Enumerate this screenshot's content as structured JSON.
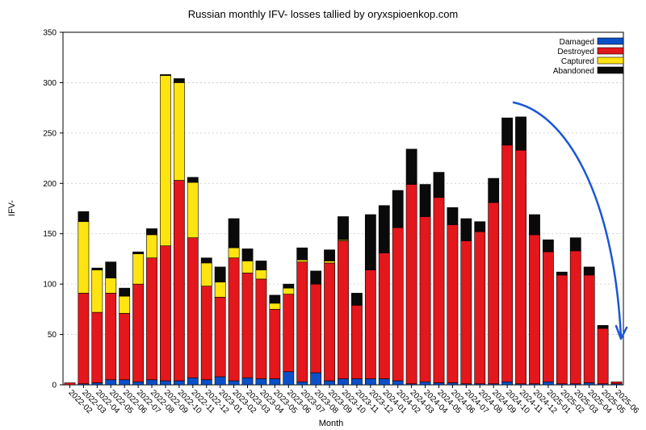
{
  "chart_data": {
    "type": "bar",
    "stacked": true,
    "title": "Russian monthly IFV- losses tallied by oryxspioenkop.com",
    "xlabel": "Month",
    "ylabel": "IFV-",
    "ylim": [
      0,
      350
    ],
    "yticks": [
      0,
      50,
      100,
      150,
      200,
      250,
      300,
      350
    ],
    "grid": true,
    "legend_position": "top-right",
    "categories": [
      "2022-02",
      "2022-03",
      "2022-04",
      "2022-05",
      "2022-06",
      "2022-07",
      "2022-08",
      "2022-09",
      "2022-10",
      "2022-11",
      "2022-12",
      "2023-01",
      "2023-02",
      "2023-03",
      "2023-04",
      "2023-05",
      "2023-06",
      "2023-07",
      "2023-08",
      "2023-09",
      "2023-10",
      "2023-11",
      "2023-12",
      "2024-01",
      "2024-02",
      "2024-03",
      "2024-04",
      "2024-05",
      "2024-06",
      "2024-07",
      "2024-08",
      "2024-09",
      "2024-10",
      "2024-11",
      "2024-12",
      "2025-01",
      "2025-02",
      "2025-03",
      "2025-04",
      "2025-05",
      "2025-06"
    ],
    "series": [
      {
        "name": "Damaged",
        "color": "#0b50c8",
        "values": [
          0,
          1,
          2,
          5,
          5,
          3,
          5,
          4,
          4,
          7,
          5,
          8,
          4,
          7,
          6,
          6,
          13,
          3,
          12,
          4,
          6,
          6,
          6,
          6,
          4,
          1,
          3,
          2,
          2,
          1,
          1,
          1,
          3,
          1,
          1,
          3,
          1,
          1,
          2,
          1,
          1
        ]
      },
      {
        "name": "Destroyed",
        "color": "#e3171c",
        "values": [
          2,
          90,
          70,
          86,
          66,
          97,
          121,
          134,
          199,
          139,
          93,
          79,
          122,
          104,
          99,
          69,
          77,
          119,
          88,
          117,
          137,
          73,
          108,
          125,
          152,
          198,
          164,
          184,
          157,
          142,
          151,
          180,
          235,
          232,
          148,
          129,
          108,
          132,
          107,
          55,
          2
        ]
      },
      {
        "name": "Captured",
        "color": "#ffe40f",
        "values": [
          0,
          71,
          42,
          15,
          17,
          30,
          23,
          169,
          97,
          55,
          23,
          15,
          10,
          12,
          9,
          6,
          6,
          2,
          0,
          2,
          1,
          0,
          0,
          0,
          0,
          0,
          0,
          0,
          0,
          0,
          0,
          0,
          0,
          0,
          0,
          0,
          0,
          0,
          0,
          0,
          0
        ]
      },
      {
        "name": "Abandoned",
        "color": "#0a0a0a",
        "values": [
          0,
          10,
          2,
          16,
          8,
          2,
          6,
          1,
          4,
          5,
          5,
          15,
          29,
          12,
          9,
          8,
          4,
          12,
          13,
          11,
          23,
          12,
          55,
          47,
          37,
          35,
          32,
          25,
          17,
          22,
          10,
          24,
          27,
          33,
          20,
          12,
          3,
          13,
          8,
          3,
          0
        ]
      }
    ],
    "annotation": {
      "type": "hand-drawn-arrow",
      "color": "#1a56d6"
    }
  }
}
